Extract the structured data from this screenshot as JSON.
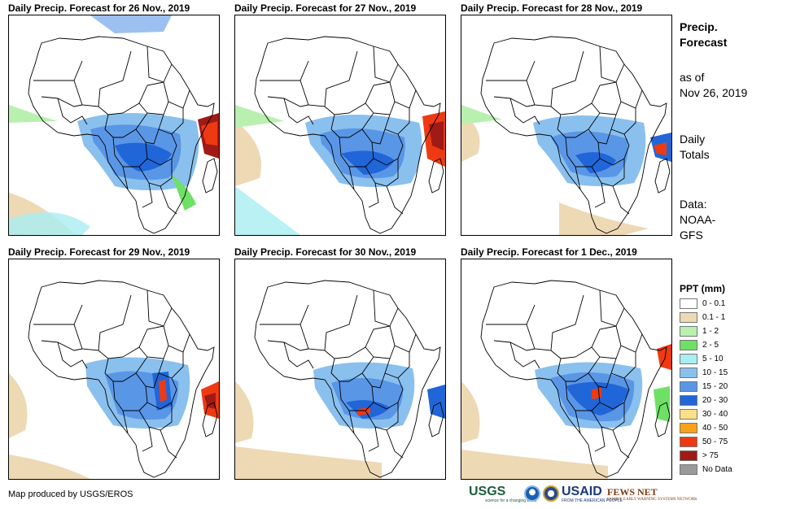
{
  "panels": [
    {
      "title": "Daily Precip. Forecast for 26 Nov., 2019"
    },
    {
      "title": "Daily Precip. Forecast for 27 Nov., 2019"
    },
    {
      "title": "Daily Precip. Forecast for 28 Nov., 2019"
    },
    {
      "title": "Daily Precip. Forecast for 29 Nov., 2019"
    },
    {
      "title": "Daily Precip. Forecast for 30 Nov., 2019"
    },
    {
      "title": "Daily Precip. Forecast for 1 Dec., 2019"
    }
  ],
  "side": {
    "title_line1": "Precip.",
    "title_line2": "Forecast",
    "asof_line1": "as of",
    "asof_line2": "Nov 26, 2019",
    "totals_line1": "Daily",
    "totals_line2": "Totals",
    "data_line1": "Data:",
    "data_line2": "NOAA-",
    "data_line3": "GFS"
  },
  "legend": {
    "title": "PPT (mm)",
    "items": [
      {
        "label": "0 - 0.1",
        "color": "#ffffff"
      },
      {
        "label": "0.1 - 1",
        "color": "#eed9b5"
      },
      {
        "label": "1 - 2",
        "color": "#b9f0b0"
      },
      {
        "label": "2 - 5",
        "color": "#6ee066"
      },
      {
        "label": "5 - 10",
        "color": "#a8eef2"
      },
      {
        "label": "10 - 15",
        "color": "#8ac0ee"
      },
      {
        "label": "15 - 20",
        "color": "#5a96e6"
      },
      {
        "label": "20 - 30",
        "color": "#2166d8"
      },
      {
        "label": "30 - 40",
        "color": "#fbe08a"
      },
      {
        "label": "40 - 50",
        "color": "#f7a21a"
      },
      {
        "label": "50 - 75",
        "color": "#ee3a12"
      },
      {
        "label": "> 75",
        "color": "#a01a16"
      },
      {
        "label": "No Data",
        "color": "#9a9a9a"
      }
    ]
  },
  "credit": "Map produced by USGS/EROS",
  "logos": {
    "usgs": "USGS",
    "usgs_tag": "science for a changing world",
    "usaid": "USAID",
    "usaid_tag": "FROM THE AMERICAN PEOPLE",
    "fews": "FEWS NET",
    "fews_tag": "FAMINE EARLY WARNING SYSTEMS NETWORK"
  },
  "colors": {
    "dry": "#eed9b5",
    "light": "#b9f0b0",
    "green": "#6ee066",
    "cyan": "#a8eef2",
    "lblue": "#8ac0ee",
    "mblue": "#5a96e6",
    "dblue": "#2166d8",
    "red": "#ee3a12",
    "dred": "#a01a16",
    "orange": "#f7a21a"
  }
}
